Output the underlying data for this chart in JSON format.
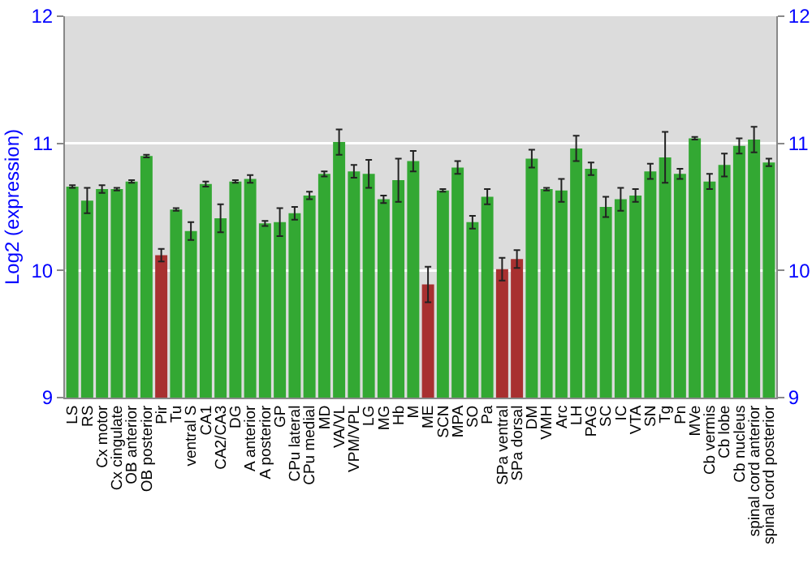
{
  "chart_data": {
    "type": "bar",
    "ylabel": "Log2 (expression)",
    "categories": [
      "LS",
      "RS",
      "Cx motor",
      "Cx cingulate",
      "OB anterior",
      "OB posterior",
      "Pir",
      "Tu",
      "ventral S",
      "CA1",
      "CA2/CA3",
      "DG",
      "A anterior",
      "A posterior",
      "GP",
      "CPu lateral",
      "CPu medial",
      "MD",
      "VA/VL",
      "VPM/VPL",
      "LG",
      "MG",
      "Hb",
      "M",
      "ME",
      "SCN",
      "MPA",
      "SO",
      "Pa",
      "SPa ventral",
      "SPa dorsal",
      "DM",
      "VMH",
      "Arc",
      "LH",
      "PAG",
      "SC",
      "IC",
      "VTA",
      "SN",
      "Tg",
      "Pn",
      "MVe",
      "Cb vermis",
      "Cb lobe",
      "Cb nucleus",
      "spinal cord anterior",
      "spinal cord posterior"
    ],
    "values": [
      10.66,
      10.55,
      10.64,
      10.64,
      10.7,
      10.9,
      10.12,
      10.48,
      10.31,
      10.68,
      10.41,
      10.7,
      10.72,
      10.37,
      10.38,
      10.45,
      10.59,
      10.76,
      11.01,
      10.78,
      10.76,
      10.56,
      10.71,
      10.86,
      9.89,
      10.63,
      10.81,
      10.38,
      10.58,
      10.01,
      10.09,
      10.88,
      10.64,
      10.63,
      10.96,
      10.8,
      10.5,
      10.56,
      10.59,
      10.78,
      10.89,
      10.76,
      11.04,
      10.7,
      10.83,
      10.98,
      11.03,
      10.85
    ],
    "errors": [
      0.01,
      0.1,
      0.03,
      0.01,
      0.01,
      0.01,
      0.05,
      0.01,
      0.07,
      0.02,
      0.11,
      0.01,
      0.03,
      0.02,
      0.11,
      0.05,
      0.03,
      0.02,
      0.1,
      0.05,
      0.11,
      0.03,
      0.17,
      0.08,
      0.14,
      0.01,
      0.05,
      0.05,
      0.06,
      0.09,
      0.07,
      0.07,
      0.01,
      0.09,
      0.1,
      0.05,
      0.08,
      0.09,
      0.05,
      0.06,
      0.2,
      0.04,
      0.01,
      0.06,
      0.09,
      0.06,
      0.1,
      0.03
    ],
    "colors": [
      "#33a833",
      "#33a833",
      "#33a833",
      "#33a833",
      "#33a833",
      "#33a833",
      "#a83030",
      "#33a833",
      "#33a833",
      "#33a833",
      "#33a833",
      "#33a833",
      "#33a833",
      "#33a833",
      "#33a833",
      "#33a833",
      "#33a833",
      "#33a833",
      "#33a833",
      "#33a833",
      "#33a833",
      "#33a833",
      "#33a833",
      "#33a833",
      "#a83030",
      "#33a833",
      "#33a833",
      "#33a833",
      "#33a833",
      "#a83030",
      "#a83030",
      "#33a833",
      "#33a833",
      "#33a833",
      "#33a833",
      "#33a833",
      "#33a833",
      "#33a833",
      "#33a833",
      "#33a833",
      "#33a833",
      "#33a833",
      "#33a833",
      "#33a833",
      "#33a833",
      "#33a833",
      "#33a833",
      "#33a833"
    ],
    "ylim": [
      9,
      12
    ],
    "yticks": [
      9,
      10,
      11,
      12
    ],
    "y2lim": [
      9,
      12
    ],
    "y2ticks": [
      9,
      10,
      11,
      12
    ],
    "grid": "y"
  }
}
